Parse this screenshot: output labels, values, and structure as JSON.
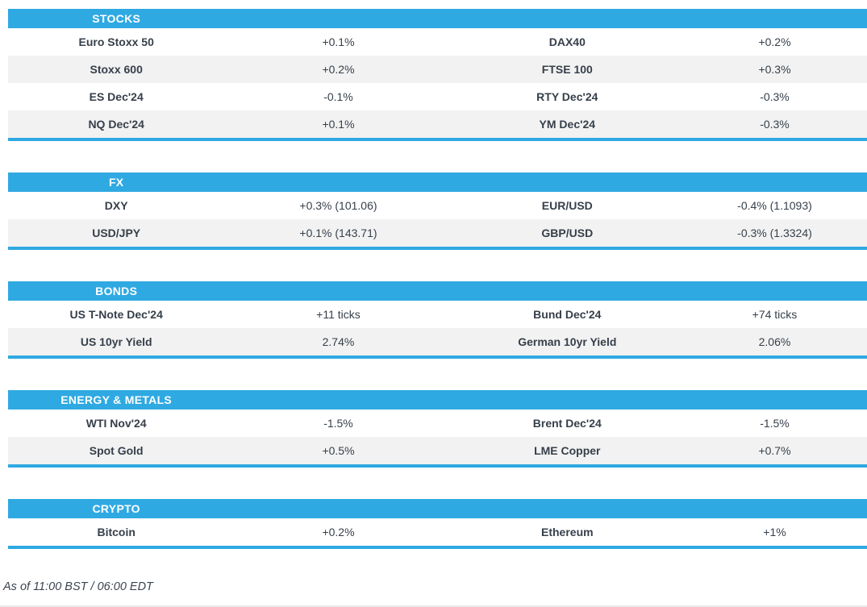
{
  "colors": {
    "accent_blue": "#2fa9e2",
    "row_alt_gray": "#f2f2f2",
    "text_dark": "#363f4a",
    "header_text": "#ffffff"
  },
  "sections": [
    {
      "title": "STOCKS",
      "rows": [
        {
          "left_label": "Euro Stoxx 50",
          "left_value": "+0.1%",
          "right_label": "DAX40",
          "right_value": "+0.2%"
        },
        {
          "left_label": "Stoxx 600",
          "left_value": "+0.2%",
          "right_label": "FTSE 100",
          "right_value": "+0.3%"
        },
        {
          "left_label": "ES Dec'24",
          "left_value": "-0.1%",
          "right_label": "RTY Dec'24",
          "right_value": "-0.3%"
        },
        {
          "left_label": "NQ Dec'24",
          "left_value": "+0.1%",
          "right_label": "YM Dec'24",
          "right_value": "-0.3%"
        }
      ]
    },
    {
      "title": "FX",
      "rows": [
        {
          "left_label": "DXY",
          "left_value": "+0.3% (101.06)",
          "right_label": "EUR/USD",
          "right_value": "-0.4% (1.1093)"
        },
        {
          "left_label": "USD/JPY",
          "left_value": "+0.1% (143.71)",
          "right_label": "GBP/USD",
          "right_value": "-0.3% (1.3324)"
        }
      ]
    },
    {
      "title": "BONDS",
      "rows": [
        {
          "left_label": "US T-Note Dec'24",
          "left_value": "+11 ticks",
          "right_label": "Bund Dec'24",
          "right_value": "+74 ticks"
        },
        {
          "left_label": "US 10yr Yield",
          "left_value": "2.74%",
          "right_label": "German 10yr Yield",
          "right_value": "2.06%"
        }
      ]
    },
    {
      "title": "ENERGY & METALS",
      "rows": [
        {
          "left_label": "WTI Nov'24",
          "left_value": "-1.5%",
          "right_label": "Brent Dec'24",
          "right_value": "-1.5%"
        },
        {
          "left_label": "Spot Gold",
          "left_value": "+0.5%",
          "right_label": "LME Copper",
          "right_value": "+0.7%"
        }
      ]
    },
    {
      "title": "CRYPTO",
      "rows": [
        {
          "left_label": "Bitcoin",
          "left_value": "+0.2%",
          "right_label": "Ethereum",
          "right_value": "+1%"
        }
      ]
    }
  ],
  "footer": {
    "text": "As of 11:00 BST / 06:00 EDT"
  }
}
